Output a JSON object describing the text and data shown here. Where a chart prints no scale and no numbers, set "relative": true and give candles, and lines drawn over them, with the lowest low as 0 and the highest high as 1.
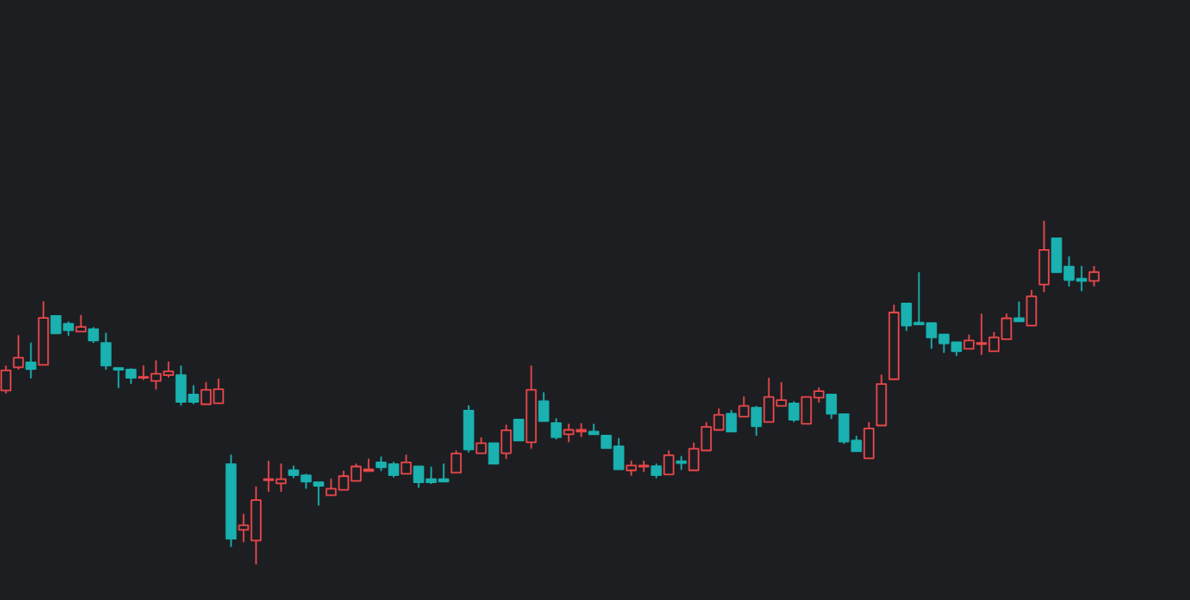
{
  "chart_data": {
    "type": "candlestick",
    "relative": true,
    "categories": [
      null,
      null,
      null,
      null,
      null,
      null,
      null,
      null,
      null,
      null,
      null,
      null,
      null,
      null,
      null,
      null,
      null,
      null,
      null,
      null,
      null,
      null,
      null,
      null,
      null,
      null,
      null,
      null,
      null,
      null,
      null,
      null,
      null,
      null,
      null,
      null,
      null,
      null,
      null,
      null,
      null,
      null,
      null,
      null,
      null,
      null,
      null,
      null,
      null,
      null,
      null,
      null,
      null,
      null,
      null,
      null,
      null,
      null,
      null,
      null,
      null,
      null,
      null,
      null,
      null,
      null,
      null,
      null,
      null,
      null,
      null,
      null,
      null,
      null,
      null,
      null,
      null,
      null,
      null,
      null,
      null,
      null,
      null,
      null,
      null,
      null,
      null,
      null
    ],
    "colors": [
      "#e8474a",
      "#e8474a",
      "#1ab1b0",
      "#e8474a",
      "#1ab1b0",
      "#1ab1b0",
      "#e8474a",
      "#1ab1b0",
      "#1ab1b0",
      "#1ab1b0",
      "#1ab1b0",
      "#e8474a",
      "#e8474a",
      "#e8474a",
      "#1ab1b0",
      "#1ab1b0",
      "#e8474a",
      "#e8474a",
      "#1ab1b0",
      "#e8474a",
      "#e8474a",
      "#e8474a",
      "#e8474a",
      "#1ab1b0",
      "#1ab1b0",
      "#1ab1b0",
      "#e8474a",
      "#e8474a",
      "#e8474a",
      "#e8474a",
      "#1ab1b0",
      "#1ab1b0",
      "#e8474a",
      "#1ab1b0",
      "#1ab1b0",
      "#1ab1b0",
      "#e8474a",
      "#1ab1b0",
      "#e8474a",
      "#1ab1b0",
      "#e8474a",
      "#1ab1b0",
      "#e8474a",
      "#1ab1b0",
      "#1ab1b0",
      "#e8474a",
      "#e8474a",
      "#1ab1b0",
      "#1ab1b0",
      "#1ab1b0",
      "#e8474a",
      "#e8474a",
      "#1ab1b0",
      "#e8474a",
      "#1ab1b0",
      "#e8474a",
      "#e8474a",
      "#e8474a",
      "#1ab1b0",
      "#e8474a",
      "#1ab1b0",
      "#e8474a",
      "#e8474a",
      "#1ab1b0",
      "#e8474a",
      "#e8474a",
      "#1ab1b0",
      "#1ab1b0",
      "#1ab1b0",
      "#e8474a",
      "#e8474a",
      "#e8474a",
      "#1ab1b0",
      "#1ab1b0",
      "#1ab1b0",
      "#1ab1b0",
      "#1ab1b0",
      "#e8474a",
      "#e8474a",
      "#e8474a",
      "#e8474a",
      "#1ab1b0",
      "#e8474a",
      "#e8474a",
      "#1ab1b0",
      "#1ab1b0",
      "#1ab1b0",
      "#e8474a"
    ],
    "ohlc": [
      [
        0.506,
        0.577,
        0.499,
        0.565
      ],
      [
        0.574,
        0.666,
        0.569,
        0.602
      ],
      [
        0.588,
        0.644,
        0.543,
        0.569
      ],
      [
        0.581,
        0.765,
        0.581,
        0.718
      ],
      [
        0.724,
        0.724,
        0.673,
        0.673
      ],
      [
        0.701,
        0.706,
        0.668,
        0.682
      ],
      [
        0.678,
        0.725,
        0.678,
        0.692
      ],
      [
        0.685,
        0.689,
        0.647,
        0.652
      ],
      [
        0.645,
        0.673,
        0.569,
        0.579
      ],
      [
        0.572,
        0.572,
        0.515,
        0.567
      ],
      [
        0.567,
        0.569,
        0.527,
        0.543
      ],
      [
        0.543,
        0.577,
        0.539,
        0.546
      ],
      [
        0.534,
        0.593,
        0.511,
        0.555
      ],
      [
        0.551,
        0.589,
        0.546,
        0.562
      ],
      [
        0.551,
        0.577,
        0.464,
        0.473
      ],
      [
        0.494,
        0.52,
        0.468,
        0.473
      ],
      [
        0.466,
        0.529,
        0.466,
        0.508
      ],
      [
        0.469,
        0.539,
        0.469,
        0.51
      ],
      [
        0.291,
        0.317,
        0.051,
        0.073
      ],
      [
        0.099,
        0.144,
        0.065,
        0.112
      ],
      [
        0.068,
        0.224,
        0,
        0.186
      ],
      [
        0.244,
        0.299,
        0.212,
        0.247
      ],
      [
        0.235,
        0.291,
        0.212,
        0.247
      ],
      [
        0.273,
        0.285,
        0.252,
        0.259
      ],
      [
        0.258,
        0.261,
        0.221,
        0.24
      ],
      [
        0.238,
        0.238,
        0.172,
        0.228
      ],
      [
        0.2,
        0.247,
        0.2,
        0.219
      ],
      [
        0.216,
        0.27,
        0.216,
        0.256
      ],
      [
        0.242,
        0.291,
        0.242,
        0.284
      ],
      [
        0.271,
        0.305,
        0.271,
        0.276
      ],
      [
        0.296,
        0.311,
        0.273,
        0.282
      ],
      [
        0.291,
        0.296,
        0.254,
        0.259
      ],
      [
        0.263,
        0.317,
        0.263,
        0.296
      ],
      [
        0.284,
        0.284,
        0.224,
        0.238
      ],
      [
        0.247,
        0.282,
        0.235,
        0.238
      ],
      [
        0.247,
        0.291,
        0.24,
        0.24
      ],
      [
        0.266,
        0.329,
        0.266,
        0.322
      ],
      [
        0.447,
        0.461,
        0.327,
        0.334
      ],
      [
        0.323,
        0.367,
        0.323,
        0.352
      ],
      [
        0.352,
        0.352,
        0.292,
        0.292
      ],
      [
        0.323,
        0.404,
        0.308,
        0.39
      ],
      [
        0.421,
        0.421,
        0.36,
        0.36
      ],
      [
        0.355,
        0.577,
        0.338,
        0.508
      ],
      [
        0.475,
        0.499,
        0.417,
        0.417
      ],
      [
        0.411,
        0.423,
        0.365,
        0.37
      ],
      [
        0.378,
        0.407,
        0.357,
        0.391
      ],
      [
        0.386,
        0.409,
        0.372,
        0.391
      ],
      [
        0.386,
        0.407,
        0.378,
        0.378
      ],
      [
        0.374,
        0.374,
        0.338,
        0.338
      ],
      [
        0.343,
        0.365,
        0.276,
        0.276
      ],
      [
        0.273,
        0.299,
        0.259,
        0.287
      ],
      [
        0.284,
        0.299,
        0.27,
        0.287
      ],
      [
        0.285,
        0.291,
        0.252,
        0.259
      ],
      [
        0.261,
        0.329,
        0.261,
        0.317
      ],
      [
        0.299,
        0.313,
        0.276,
        0.294
      ],
      [
        0.273,
        0.352,
        0.273,
        0.336
      ],
      [
        0.331,
        0.412,
        0.331,
        0.4
      ],
      [
        0.391,
        0.452,
        0.391,
        0.435
      ],
      [
        0.438,
        0.447,
        0.386,
        0.386
      ],
      [
        0.43,
        0.487,
        0.43,
        0.461
      ],
      [
        0.456,
        0.459,
        0.376,
        0.402
      ],
      [
        0.414,
        0.541,
        0.414,
        0.487
      ],
      [
        0.461,
        0.529,
        0.461,
        0.478
      ],
      [
        0.468,
        0.473,
        0.416,
        0.421
      ],
      [
        0.409,
        0.487,
        0.409,
        0.487
      ],
      [
        0.485,
        0.513,
        0.473,
        0.504
      ],
      [
        0.494,
        0.494,
        0.425,
        0.438
      ],
      [
        0.437,
        0.437,
        0.352,
        0.357
      ],
      [
        0.36,
        0.372,
        0.329,
        0.329
      ],
      [
        0.308,
        0.412,
        0.308,
        0.395
      ],
      [
        0.404,
        0.551,
        0.404,
        0.525
      ],
      [
        0.539,
        0.755,
        0.539,
        0.734
      ],
      [
        0.76,
        0.76,
        0.682,
        0.696
      ],
      [
        0.704,
        0.85,
        0.699,
        0.699
      ],
      [
        0.703,
        0.703,
        0.63,
        0.661
      ],
      [
        0.67,
        0.67,
        0.618,
        0.644
      ],
      [
        0.647,
        0.647,
        0.609,
        0.621
      ],
      [
        0.628,
        0.668,
        0.628,
        0.652
      ],
      [
        0.642,
        0.729,
        0.612,
        0.645
      ],
      [
        0.621,
        0.675,
        0.621,
        0.661
      ],
      [
        0.656,
        0.729,
        0.656,
        0.717
      ],
      [
        0.717,
        0.764,
        0.708,
        0.708
      ],
      [
        0.696,
        0.798,
        0.696,
        0.781
      ],
      [
        0.816,
        1,
        0.795,
        0.917
      ],
      [
        0.951,
        0.951,
        0.852,
        0.852
      ],
      [
        0.868,
        0.896,
        0.812,
        0.829
      ],
      [
        0.833,
        0.868,
        0.798,
        0.826
      ],
      [
        0.826,
        0.868,
        0.812,
        0.852
      ]
    ]
  }
}
